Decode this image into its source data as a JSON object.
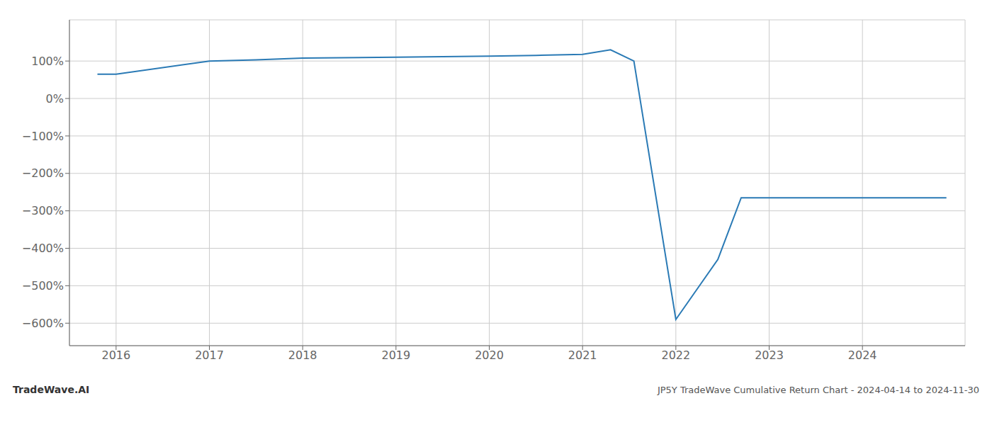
{
  "chart_data": {
    "type": "line",
    "title": "JP5Y TradeWave Cumulative Return Chart - 2024-04-14 to 2024-11-30",
    "annotations": [
      "TradeWave.AI"
    ],
    "x": [
      2015.8,
      2016.0,
      2017.0,
      2017.5,
      2018.0,
      2019.0,
      2020.0,
      2020.5,
      2021.0,
      2021.3,
      2021.55,
      2022.0,
      2022.45,
      2022.7,
      2023.0,
      2023.5,
      2024.0,
      2024.9
    ],
    "values": [
      65,
      65,
      100,
      103,
      108,
      110,
      113,
      115,
      118,
      130,
      100,
      -590,
      -430,
      -265,
      -265,
      -265,
      -265,
      -265
    ],
    "color": "#2a7ab5",
    "xlim": [
      2015.5,
      2025.1
    ],
    "ylim": [
      -660,
      210
    ],
    "xticks": [
      2016,
      2017,
      2018,
      2019,
      2020,
      2021,
      2022,
      2023,
      2024
    ],
    "yticks": [
      {
        "value": 100,
        "label": "100%"
      },
      {
        "value": 0,
        "label": "0%"
      },
      {
        "value": -100,
        "label": "−100%"
      },
      {
        "value": -200,
        "label": "−200%"
      },
      {
        "value": -300,
        "label": "−300%"
      },
      {
        "value": -400,
        "label": "−400%"
      },
      {
        "value": -500,
        "label": "−500%"
      },
      {
        "value": -600,
        "label": "−600%"
      }
    ],
    "grid": true
  }
}
